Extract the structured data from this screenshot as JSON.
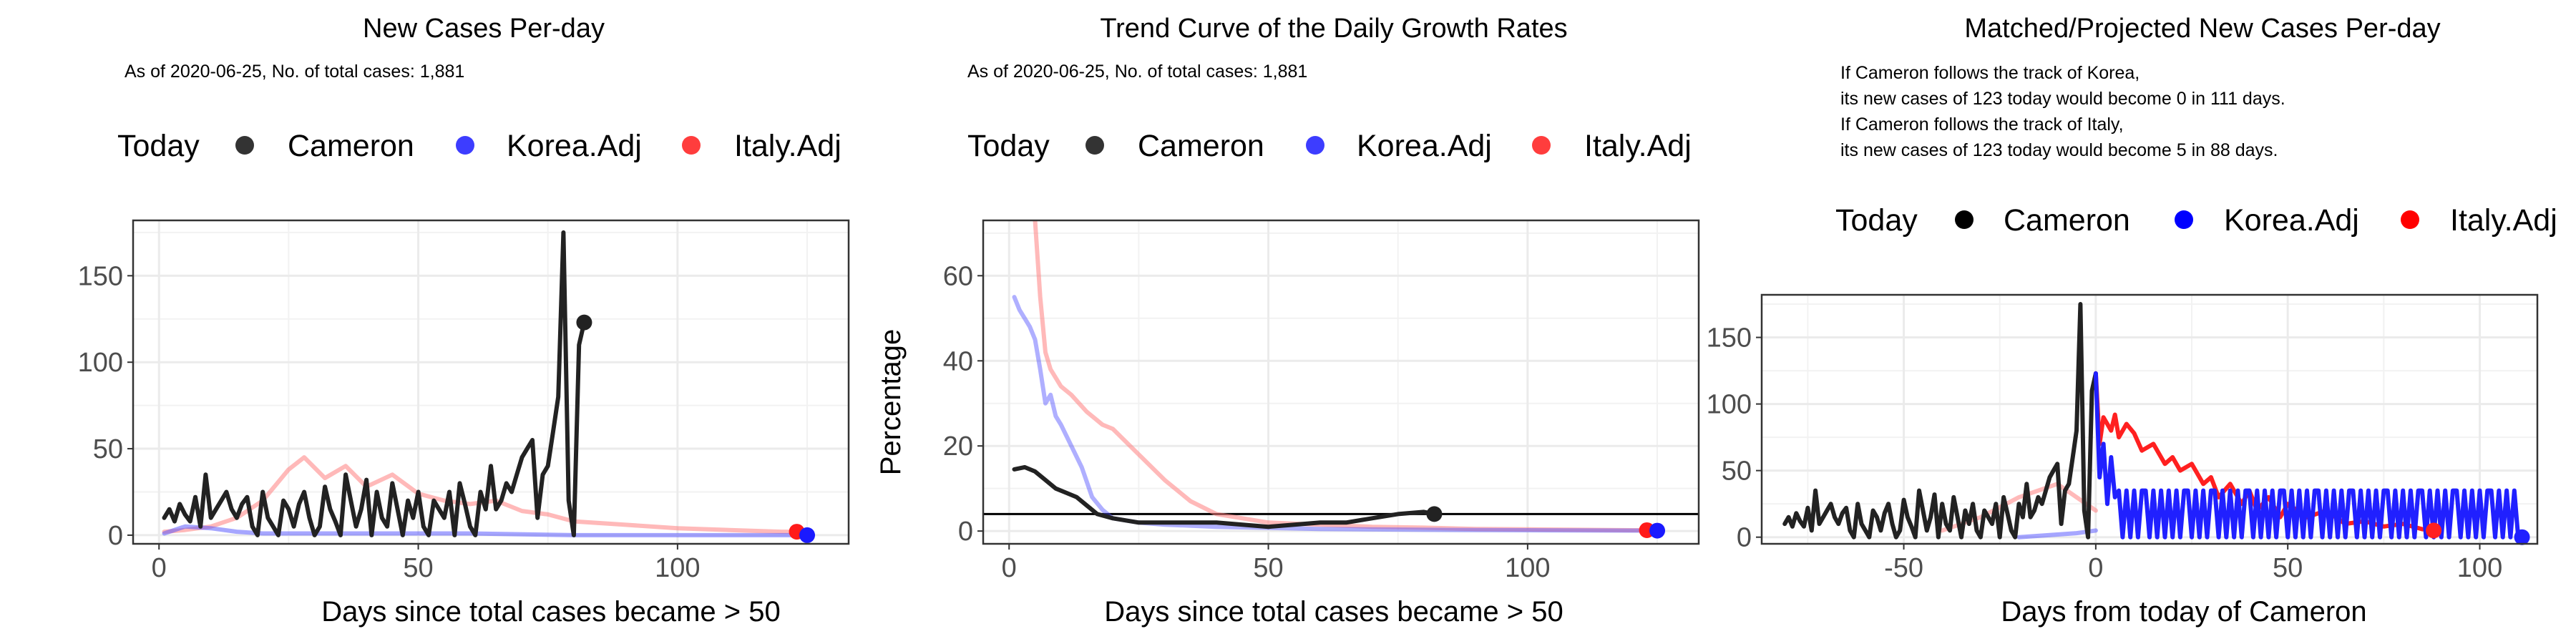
{
  "chart_data": [
    {
      "type": "line",
      "title": "New Cases Per-day",
      "subtitle": "As of 2020-06-25, No. of total cases: 1,881",
      "xlabel": "Days since total cases became > 50",
      "ylabel": "",
      "xlim": [
        -5,
        133
      ],
      "ylim": [
        -5,
        182
      ],
      "xticks": [
        0,
        50,
        100
      ],
      "yticks": [
        0,
        50,
        100,
        150
      ],
      "legend_position": "top",
      "legend_title": "Today",
      "legend": [
        "Cameron",
        "Korea.Adj",
        "Italy.Adj"
      ],
      "series": [
        {
          "name": "Italy.Adj",
          "color": "#ff8080",
          "opacity": 0.55,
          "x": [
            1,
            5,
            10,
            15,
            20,
            25,
            28,
            32,
            36,
            40,
            45,
            50,
            55,
            60,
            65,
            70,
            75,
            80,
            90,
            100,
            110,
            120,
            123
          ],
          "y": [
            2,
            3,
            5,
            10,
            20,
            38,
            45,
            33,
            40,
            28,
            35,
            24,
            20,
            18,
            20,
            14,
            12,
            8,
            6,
            4,
            3,
            2,
            2
          ],
          "endpoint": {
            "x": 123,
            "y": 2
          }
        },
        {
          "name": "Korea.Adj",
          "color": "#4d4dff",
          "opacity": 0.5,
          "x": [
            1,
            5,
            10,
            15,
            20,
            30,
            40,
            60,
            80,
            100,
            120,
            125
          ],
          "y": [
            1,
            5,
            4,
            2,
            1,
            1,
            1,
            1,
            0,
            0,
            0,
            0
          ],
          "endpoint": {
            "x": 125,
            "y": 0
          }
        },
        {
          "name": "Cameron",
          "color": "#222222",
          "opacity": 1,
          "x": [
            1,
            2,
            3,
            4,
            5,
            6,
            7,
            8,
            9,
            10,
            11,
            12,
            13,
            14,
            15,
            16,
            17,
            18,
            19,
            20,
            21,
            22,
            23,
            24,
            25,
            26,
            27,
            28,
            29,
            30,
            31,
            32,
            33,
            34,
            35,
            36,
            37,
            38,
            39,
            40,
            41,
            42,
            43,
            44,
            45,
            46,
            47,
            48,
            49,
            50,
            51,
            52,
            53,
            54,
            55,
            56,
            57,
            58,
            59,
            60,
            61,
            62,
            63,
            64,
            65,
            66,
            67,
            68,
            69,
            70,
            71,
            72,
            73,
            74,
            75,
            76,
            77,
            78,
            79,
            80,
            81,
            82
          ],
          "y": [
            10,
            15,
            8,
            18,
            12,
            8,
            22,
            5,
            35,
            10,
            15,
            20,
            25,
            15,
            10,
            18,
            22,
            5,
            0,
            25,
            10,
            5,
            0,
            20,
            15,
            5,
            18,
            25,
            10,
            0,
            5,
            28,
            15,
            8,
            0,
            35,
            20,
            5,
            15,
            32,
            0,
            25,
            10,
            5,
            30,
            15,
            0,
            20,
            10,
            25,
            5,
            0,
            20,
            15,
            10,
            25,
            0,
            30,
            18,
            5,
            0,
            25,
            15,
            40,
            15,
            20,
            30,
            25,
            35,
            45,
            50,
            55,
            10,
            35,
            40,
            60,
            80,
            175,
            20,
            0,
            110,
            123
          ],
          "endpoint": {
            "x": 82,
            "y": 123
          }
        }
      ]
    },
    {
      "type": "line",
      "title": "Trend Curve of the Daily Growth Rates",
      "subtitle": "As of 2020-06-25, No. of total cases: 1,881",
      "xlabel": "Days since total cases became > 50",
      "ylabel": "Percentage",
      "xlim": [
        -5,
        133
      ],
      "ylim": [
        -3,
        73
      ],
      "xticks": [
        0,
        50,
        100
      ],
      "yticks": [
        0,
        20,
        40,
        60
      ],
      "reference_line_y": 4,
      "legend_position": "top",
      "legend_title": "Today",
      "legend": [
        "Cameron",
        "Korea.Adj",
        "Italy.Adj"
      ],
      "series": [
        {
          "name": "Italy.Adj",
          "color": "#ff8080",
          "opacity": 0.55,
          "x": [
            5,
            6,
            7,
            8,
            10,
            12,
            15,
            18,
            20,
            25,
            30,
            35,
            40,
            45,
            50,
            60,
            70,
            80,
            90,
            100,
            110,
            120,
            123
          ],
          "y": [
            73,
            55,
            42,
            38,
            34,
            32,
            28,
            25,
            24,
            18,
            12,
            7,
            4,
            3,
            2,
            1.5,
            1,
            0.8,
            0.5,
            0.4,
            0.3,
            0.2,
            0.2
          ],
          "endpoint": {
            "x": 123,
            "y": 0.2
          }
        },
        {
          "name": "Korea.Adj",
          "color": "#4d4dff",
          "opacity": 0.45,
          "x": [
            1,
            2,
            3,
            4,
            5,
            6,
            7,
            8,
            9,
            10,
            12,
            14,
            16,
            18,
            20,
            25,
            30,
            40,
            60,
            80,
            100,
            125
          ],
          "y": [
            55,
            52,
            50,
            48,
            45,
            38,
            30,
            32,
            27,
            25,
            20,
            15,
            8,
            5,
            3,
            2,
            1.5,
            1,
            0.5,
            0.3,
            0.2,
            0.1
          ],
          "endpoint": {
            "x": 125,
            "y": 0.1
          }
        },
        {
          "name": "Cameron",
          "color": "#222222",
          "opacity": 1,
          "x": [
            1,
            3,
            5,
            7,
            9,
            11,
            13,
            15,
            17,
            20,
            25,
            30,
            35,
            40,
            45,
            50,
            55,
            60,
            65,
            70,
            75,
            80,
            82
          ],
          "y": [
            14.5,
            15,
            14,
            12,
            10,
            9,
            8,
            6,
            4,
            3,
            2,
            2,
            2,
            2,
            1.5,
            1,
            1.5,
            2,
            2,
            3,
            4,
            4.5,
            4
          ],
          "endpoint": {
            "x": 82,
            "y": 4
          }
        }
      ]
    },
    {
      "type": "line",
      "title": "Matched/Projected New Cases Per-day",
      "annotation": [
        "If Cameron follows the track of Korea,",
        "its new cases of 123 today would become 0 in 111 days.",
        "If Cameron follows the track of Italy,",
        "its new cases of 123 today would become 5 in 88 days."
      ],
      "xlabel": "Days from today of Cameron",
      "ylabel": "",
      "xlim": [
        -87,
        115
      ],
      "ylim": [
        -5,
        182
      ],
      "xticks": [
        -50,
        0,
        50,
        100
      ],
      "yticks": [
        0,
        50,
        100,
        150
      ],
      "legend_position": "top",
      "legend_title": "Today",
      "legend": [
        "Cameron",
        "Korea.Adj",
        "Italy.Adj"
      ],
      "series": [
        {
          "name": "Italy.Adj (matched)",
          "color": "#ff8080",
          "opacity": 0.55,
          "x": [
            -40,
            -30,
            -20,
            -10,
            -5,
            0
          ],
          "y": [
            5,
            15,
            30,
            40,
            30,
            20
          ]
        },
        {
          "name": "Korea.Adj (matched)",
          "color": "#4d4dff",
          "opacity": 0.5,
          "x": [
            -20,
            -10,
            -5,
            0
          ],
          "y": [
            0,
            2,
            3,
            5
          ]
        },
        {
          "name": "Cameron",
          "color": "#222222",
          "opacity": 1,
          "x": [
            -81,
            -80,
            -79,
            -78,
            -77,
            -76,
            -75,
            -74,
            -73,
            -72,
            -71,
            -70,
            -69,
            -68,
            -67,
            -66,
            -65,
            -64,
            -63,
            -62,
            -61,
            -60,
            -59,
            -58,
            -57,
            -56,
            -55,
            -54,
            -53,
            -52,
            -51,
            -50,
            -49,
            -48,
            -47,
            -46,
            -45,
            -44,
            -43,
            -42,
            -41,
            -40,
            -39,
            -38,
            -37,
            -36,
            -35,
            -34,
            -33,
            -32,
            -31,
            -30,
            -29,
            -28,
            -27,
            -26,
            -25,
            -24,
            -23,
            -22,
            -21,
            -20,
            -19,
            -18,
            -17,
            -16,
            -15,
            -14,
            -13,
            -12,
            -11,
            -10,
            -9,
            -8,
            -7,
            -6,
            -5,
            -4,
            -3,
            -2,
            -1,
            0
          ],
          "y": [
            10,
            15,
            8,
            18,
            12,
            8,
            22,
            5,
            35,
            10,
            15,
            20,
            25,
            15,
            10,
            18,
            22,
            5,
            0,
            25,
            10,
            5,
            0,
            20,
            15,
            5,
            18,
            25,
            10,
            0,
            5,
            28,
            15,
            8,
            0,
            35,
            20,
            5,
            15,
            32,
            0,
            25,
            10,
            5,
            30,
            15,
            0,
            20,
            10,
            25,
            5,
            0,
            20,
            15,
            10,
            25,
            0,
            30,
            18,
            5,
            0,
            25,
            15,
            40,
            15,
            20,
            30,
            25,
            35,
            45,
            50,
            55,
            10,
            35,
            40,
            60,
            80,
            175,
            20,
            0,
            110,
            123
          ]
        },
        {
          "name": "Italy.Adj",
          "color": "#ff2020",
          "opacity": 1,
          "x": [
            0,
            1,
            2,
            3,
            4,
            5,
            6,
            8,
            10,
            12,
            15,
            18,
            20,
            22,
            25,
            28,
            30,
            32,
            35,
            38,
            40,
            42,
            45,
            48,
            50,
            55,
            60,
            65,
            70,
            75,
            80,
            85,
            88
          ],
          "y": [
            123,
            70,
            90,
            85,
            80,
            92,
            75,
            85,
            78,
            65,
            70,
            55,
            60,
            50,
            55,
            40,
            45,
            30,
            40,
            25,
            35,
            20,
            30,
            15,
            25,
            15,
            20,
            10,
            12,
            8,
            10,
            6,
            5
          ],
          "endpoint": {
            "x": 88,
            "y": 5
          }
        },
        {
          "name": "Korea.Adj",
          "color": "#2020ff",
          "opacity": 1,
          "x": [
            0,
            1,
            2,
            3,
            4,
            5,
            6,
            7,
            8,
            9,
            10,
            11,
            12,
            13,
            14,
            15,
            16,
            17,
            18,
            19,
            20,
            21,
            22,
            23,
            24,
            25,
            26,
            27,
            28,
            29,
            30,
            31,
            32,
            33,
            34,
            35,
            36,
            37,
            38,
            39,
            40,
            41,
            42,
            43,
            44,
            45,
            46,
            47,
            48,
            49,
            50,
            51,
            52,
            53,
            54,
            55,
            56,
            57,
            58,
            59,
            60,
            61,
            62,
            63,
            64,
            65,
            66,
            67,
            68,
            69,
            70,
            71,
            72,
            73,
            74,
            75,
            76,
            77,
            78,
            79,
            80,
            81,
            82,
            83,
            84,
            85,
            86,
            87,
            88,
            89,
            90,
            91,
            92,
            93,
            94,
            95,
            96,
            97,
            98,
            99,
            100,
            101,
            102,
            103,
            104,
            105,
            106,
            107,
            108,
            109,
            110,
            111
          ],
          "y": [
            123,
            45,
            70,
            25,
            60,
            30,
            35,
            0,
            35,
            0,
            35,
            0,
            35,
            35,
            0,
            35,
            0,
            35,
            0,
            35,
            0,
            35,
            0,
            35,
            35,
            0,
            35,
            0,
            35,
            0,
            35,
            35,
            0,
            35,
            0,
            35,
            0,
            35,
            0,
            35,
            35,
            0,
            35,
            0,
            35,
            0,
            35,
            0,
            35,
            35,
            0,
            35,
            0,
            35,
            0,
            35,
            0,
            35,
            35,
            0,
            35,
            0,
            35,
            0,
            35,
            0,
            35,
            35,
            0,
            35,
            0,
            35,
            0,
            35,
            0,
            35,
            35,
            0,
            35,
            0,
            35,
            0,
            35,
            0,
            35,
            35,
            0,
            35,
            0,
            35,
            0,
            35,
            0,
            35,
            35,
            0,
            35,
            0,
            35,
            0,
            35,
            0,
            35,
            35,
            0,
            35,
            0,
            35,
            0,
            35,
            0,
            0
          ],
          "endpoint": {
            "x": 111,
            "y": 0
          }
        }
      ]
    }
  ]
}
